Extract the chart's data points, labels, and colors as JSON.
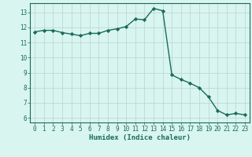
{
  "x": [
    0,
    1,
    2,
    3,
    4,
    5,
    6,
    7,
    8,
    9,
    10,
    11,
    12,
    13,
    14,
    15,
    16,
    17,
    18,
    19,
    20,
    21,
    22,
    23
  ],
  "y": [
    11.7,
    11.8,
    11.8,
    11.65,
    11.55,
    11.45,
    11.6,
    11.6,
    11.8,
    11.9,
    12.05,
    12.55,
    12.5,
    13.25,
    13.1,
    8.85,
    8.55,
    8.3,
    8.0,
    7.4,
    6.5,
    6.2,
    6.3,
    6.2
  ],
  "line_color": "#1a6b5a",
  "marker": "D",
  "marker_size": 2.2,
  "bg_color": "#d9f5f0",
  "grid_color": "#bcd9d4",
  "xlabel": "Humidex (Indice chaleur)",
  "ylim": [
    5.7,
    13.6
  ],
  "xlim": [
    -0.5,
    23.5
  ],
  "yticks": [
    6,
    7,
    8,
    9,
    10,
    11,
    12,
    13
  ],
  "xticks": [
    0,
    1,
    2,
    3,
    4,
    5,
    6,
    7,
    8,
    9,
    10,
    11,
    12,
    13,
    14,
    15,
    16,
    17,
    18,
    19,
    20,
    21,
    22,
    23
  ],
  "tick_color": "#1a6b5a",
  "label_fontsize": 6.5,
  "tick_fontsize": 5.5,
  "linewidth": 1.0
}
